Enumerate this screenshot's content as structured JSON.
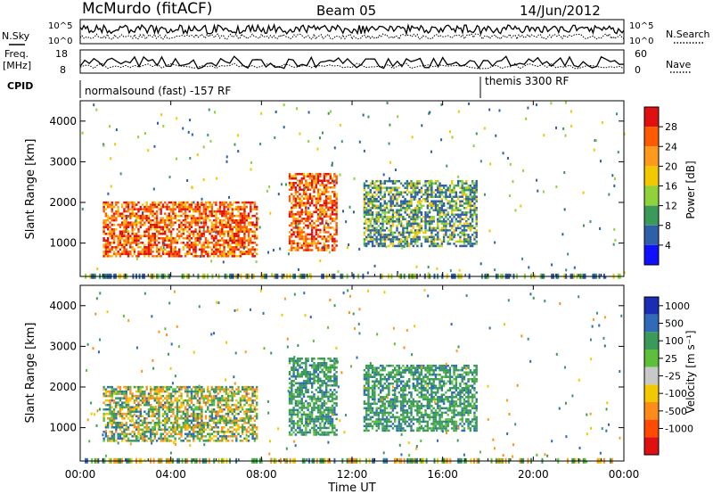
{
  "header": {
    "station": "McMurdo (fitACF)",
    "beam": "Beam 05",
    "date": "14/Jun/2012"
  },
  "top_panels": {
    "nsky_label": "N.Sky",
    "nsearch_label": "N.Search",
    "count_ticks_left": [
      "10^5",
      "10^0"
    ],
    "count_ticks_right": [
      "10^5",
      "10^0"
    ],
    "freq_label_1": "Freq.",
    "freq_label_2": "[MHz]",
    "freq_ticks": [
      "18",
      "8"
    ],
    "nave_label": "Nave",
    "nave_ticks": [
      "60",
      "0"
    ],
    "cpid_label": "CPID",
    "cpid_1": "normalsound (fast) -157 RF",
    "cpid_2": "themis 3300 RF"
  },
  "x_axis": {
    "label": "Time UT",
    "ticks": [
      "00:00",
      "04:00",
      "08:00",
      "12:00",
      "16:00",
      "20:00",
      "00:00"
    ]
  },
  "chart_data": [
    {
      "type": "heatmap",
      "panel": "power",
      "ylabel": "Slant Range [km]",
      "yticks": [
        "4000",
        "3000",
        "2000",
        "1000"
      ],
      "ylim": [
        180,
        4500
      ],
      "xlim_hours": [
        0,
        24
      ],
      "colorbar_label": "Power [dB]",
      "colorbar_ticks": [
        "28",
        "24",
        "20",
        "16",
        "12",
        "8",
        "4"
      ],
      "colorbar_colors": [
        "#e01010",
        "#ff5a00",
        "#ff9a1a",
        "#f2c800",
        "#8fd23a",
        "#3a9a5a",
        "#2f5fa8",
        "#1010ff"
      ],
      "regions": [
        {
          "t": [
            1.0,
            7.8
          ],
          "r": [
            650,
            2000
          ],
          "level": "high"
        },
        {
          "t": [
            9.2,
            11.3
          ],
          "r": [
            800,
            2700
          ],
          "level": "high"
        },
        {
          "t": [
            12.5,
            17.5
          ],
          "r": [
            900,
            2500
          ],
          "level": "low"
        }
      ]
    },
    {
      "type": "heatmap",
      "panel": "velocity",
      "ylabel": "Slant Range [km]",
      "yticks": [
        "4000",
        "3000",
        "2000",
        "1000"
      ],
      "ylim": [
        180,
        4500
      ],
      "xlim_hours": [
        0,
        24
      ],
      "colorbar_label": "Velocity [m s⁻¹]",
      "colorbar_ticks": [
        "1000",
        "500",
        "100",
        "25",
        "-25",
        "-100",
        "-500",
        "-1000"
      ],
      "colorbar_colors": [
        "#1a2db4",
        "#2f6bb8",
        "#3a9a5a",
        "#5dbf3a",
        "#c8c8c8",
        "#f2c800",
        "#ff8c1a",
        "#ff4a00",
        "#e01010"
      ],
      "regions": [
        {
          "t": [
            1.0,
            7.8
          ],
          "r": [
            650,
            2000
          ],
          "level": "mixed"
        },
        {
          "t": [
            9.2,
            11.3
          ],
          "r": [
            800,
            2700
          ],
          "level": "positive"
        },
        {
          "t": [
            12.5,
            17.5
          ],
          "r": [
            900,
            2500
          ],
          "level": "positive"
        }
      ]
    }
  ]
}
